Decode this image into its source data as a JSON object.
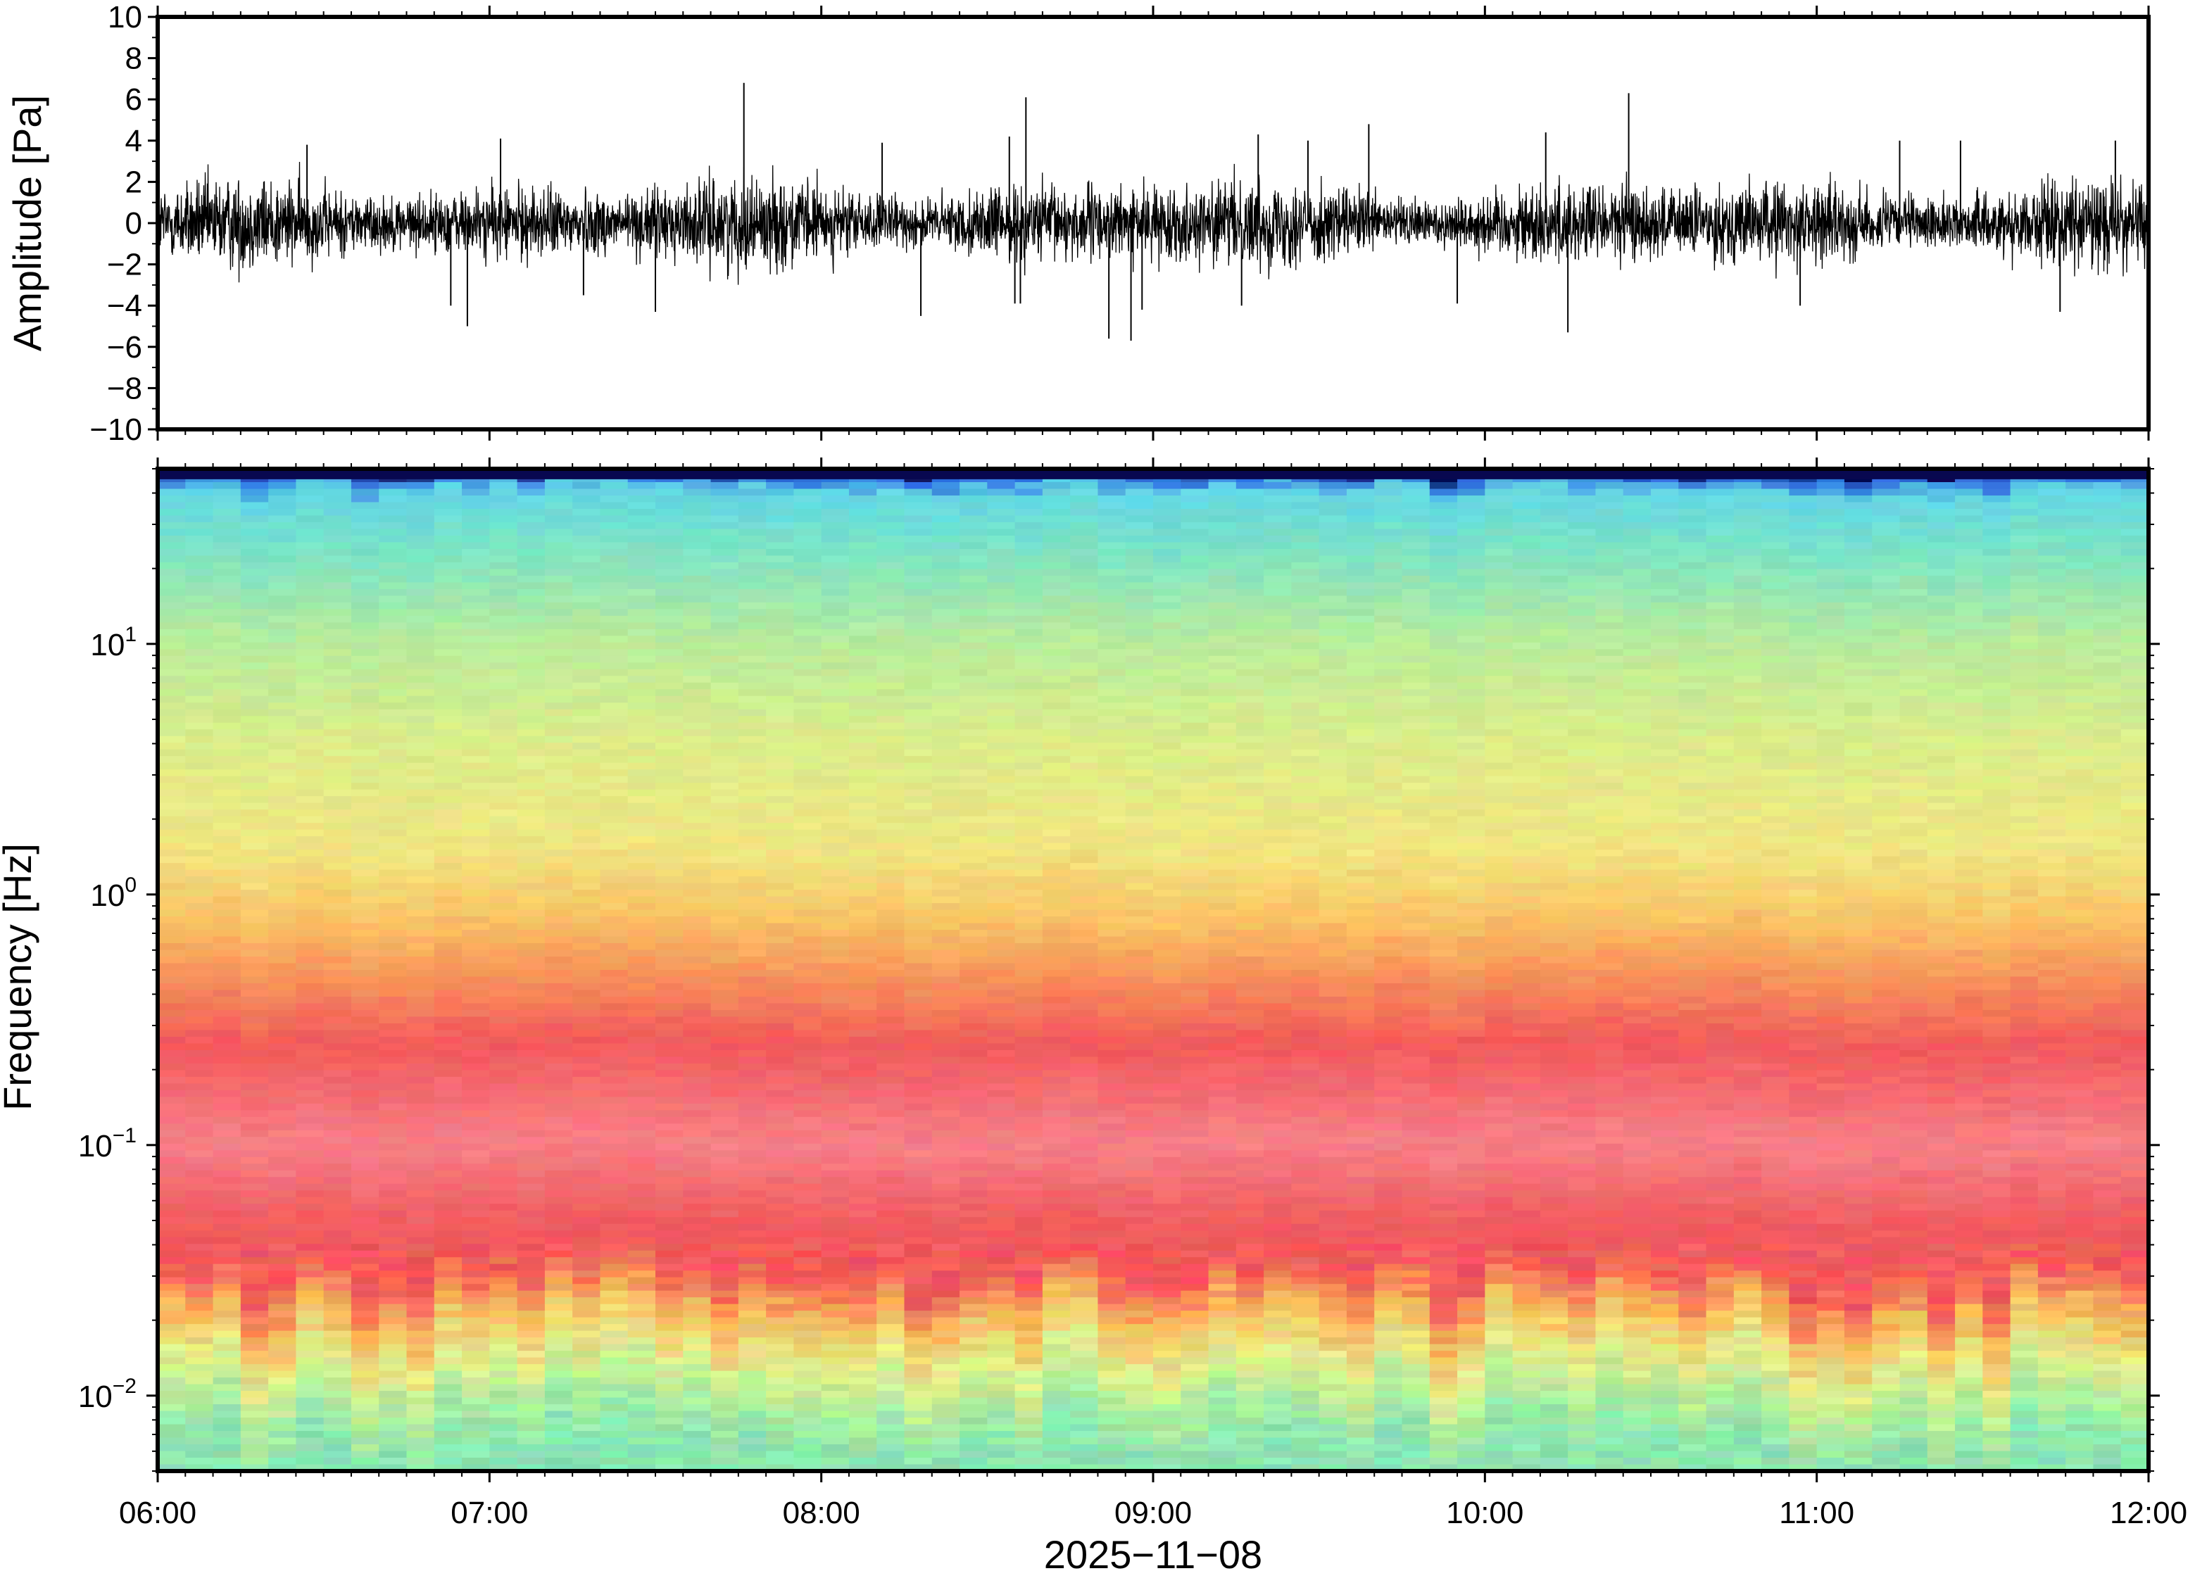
{
  "chart_data": [
    {
      "type": "line",
      "panel": "waveform",
      "ylabel": "Amplitude [Pa]",
      "ylim": [
        -10,
        10
      ],
      "yticks": [
        "10",
        "8",
        "6",
        "4",
        "2",
        "0",
        "−2",
        "−4",
        "−6",
        "−8",
        "−10"
      ],
      "xlim": [
        "06:00",
        "12:00"
      ],
      "grid": false,
      "series_color": "#000000",
      "envelope": {
        "description_of_values": "noise band mostly within about ±2 Pa with spikes",
        "typical_range": [
          -2.5,
          2.5
        ]
      },
      "spikes": [
        {
          "time": "06:27",
          "value": 3.8
        },
        {
          "time": "06:53",
          "value": -4.0
        },
        {
          "time": "06:56",
          "value": -5.0
        },
        {
          "time": "07:02",
          "value": 4.1
        },
        {
          "time": "07:17",
          "value": -3.5
        },
        {
          "time": "07:30",
          "value": -4.3
        },
        {
          "time": "07:46",
          "value": 6.8
        },
        {
          "time": "08:11",
          "value": 3.9
        },
        {
          "time": "08:18",
          "value": -4.5
        },
        {
          "time": "08:34",
          "value": 4.2
        },
        {
          "time": "08:35",
          "value": -3.9
        },
        {
          "time": "08:36",
          "value": -3.9
        },
        {
          "time": "08:37",
          "value": 6.1
        },
        {
          "time": "08:52",
          "value": -5.6
        },
        {
          "time": "08:56",
          "value": -5.7
        },
        {
          "time": "08:58",
          "value": -4.2
        },
        {
          "time": "09:16",
          "value": -4.0
        },
        {
          "time": "09:19",
          "value": 4.3
        },
        {
          "time": "09:28",
          "value": 4.0
        },
        {
          "time": "09:39",
          "value": 4.8
        },
        {
          "time": "09:55",
          "value": -3.9
        },
        {
          "time": "10:11",
          "value": 4.4
        },
        {
          "time": "10:15",
          "value": -5.3
        },
        {
          "time": "10:26",
          "value": 6.3
        },
        {
          "time": "10:57",
          "value": -4.0
        },
        {
          "time": "11:15",
          "value": 4.0
        },
        {
          "time": "11:26",
          "value": 4.0
        },
        {
          "time": "11:44",
          "value": -4.3
        },
        {
          "time": "11:54",
          "value": 4.0
        }
      ]
    },
    {
      "type": "heatmap",
      "panel": "spectrogram",
      "ylabel": "Frequency [Hz]",
      "yscale": "log",
      "ylim": [
        0.005,
        50
      ],
      "yticks": [
        {
          "base": "10",
          "exp": "−2",
          "value": 0.01
        },
        {
          "base": "10",
          "exp": "−1",
          "value": 0.1
        },
        {
          "base": "10",
          "exp": "0",
          "value": 1
        },
        {
          "base": "10",
          "exp": "1",
          "value": 10
        }
      ],
      "xlabel": "2025−11−08",
      "xticks": [
        "06:00",
        "07:00",
        "08:00",
        "09:00",
        "10:00",
        "11:00",
        "12:00"
      ],
      "xlim": [
        "06:00",
        "12:00"
      ],
      "colormap": "rainbow",
      "color_profile": [
        {
          "freq": 50,
          "color": "#080850"
        },
        {
          "freq": 46,
          "color": "#2f6fe0"
        },
        {
          "freq": 40,
          "color": "#62d6e6"
        },
        {
          "freq": 25,
          "color": "#78e3c8"
        },
        {
          "freq": 10,
          "color": "#b9ec9c"
        },
        {
          "freq": 4,
          "color": "#dced8a"
        },
        {
          "freq": 1.5,
          "color": "#f0e682"
        },
        {
          "freq": 0.8,
          "color": "#f9c466"
        },
        {
          "freq": 0.45,
          "color": "#f6905a"
        },
        {
          "freq": 0.25,
          "color": "#f2595c"
        },
        {
          "freq": 0.1,
          "color": "#f68088"
        },
        {
          "freq": 0.05,
          "color": "#f05d61"
        },
        {
          "freq": 0.03,
          "color": "#f3555a"
        },
        {
          "freq": 0.02,
          "color": "#f8b85a"
        },
        {
          "freq": 0.013,
          "color": "#e4ee8c"
        },
        {
          "freq": 0.009,
          "color": "#b2ee9a"
        },
        {
          "freq": 0.006,
          "color": "#8be6b2"
        }
      ]
    }
  ]
}
